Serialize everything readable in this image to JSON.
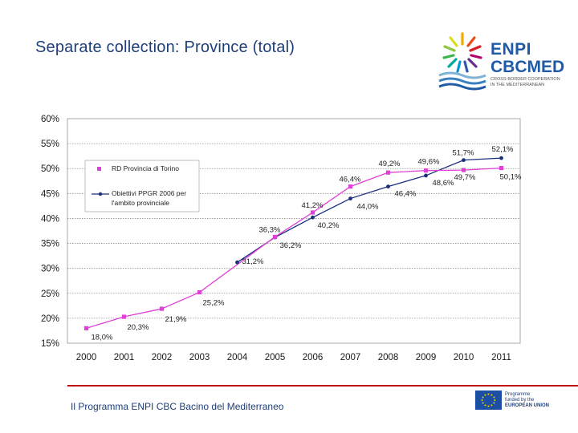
{
  "title": "Separate collection: Province (total)",
  "footer": "Il Programma ENPI CBC Bacino del Mediterraneo",
  "logo": {
    "line1": "ENPI",
    "line2": "CBCMED",
    "tagline1": "CROSS-BORDER COOPERATION",
    "tagline2": "IN THE MEDITERRANEAN"
  },
  "eu_logo": {
    "line1": "Programme",
    "line2": "funded by the",
    "line3": "EUROPEAN UNION"
  },
  "colors": {
    "rd": "#e040d8",
    "target": "#1a2f7a",
    "grid": "#8f8f8f",
    "plot_border": "#a8a8a8",
    "title": "#1f3f78",
    "footer_line": "#c00000"
  },
  "chart_data": {
    "type": "line",
    "title": "",
    "xlabel": "",
    "ylabel": "",
    "x": [
      "2000",
      "2001",
      "2002",
      "2003",
      "2004",
      "2005",
      "2006",
      "2007",
      "2008",
      "2009",
      "2010",
      "2011"
    ],
    "yticks": [
      "15%",
      "20%",
      "25%",
      "30%",
      "35%",
      "40%",
      "45%",
      "50%",
      "55%",
      "60%"
    ],
    "ylim": [
      15,
      60
    ],
    "grid": true,
    "legend_position": "top-left",
    "series": [
      {
        "name": "RD Provincia di Torino",
        "marker": "square",
        "values": [
          18.0,
          20.3,
          21.9,
          25.2,
          null,
          36.3,
          41.2,
          46.4,
          49.2,
          49.6,
          49.7,
          50.1
        ],
        "labels": [
          "18,0%",
          "20,3%",
          "21,9%",
          "25,2%",
          "",
          "36,3%",
          "41,2%",
          "46,4%",
          "49,2%",
          "49,6%",
          "49,7%",
          "50,1%"
        ]
      },
      {
        "name": "Obiettivi PPGR 2006 per l'ambito provinciale",
        "marker": "diamond",
        "values": [
          null,
          null,
          null,
          null,
          31.2,
          36.2,
          40.2,
          44.0,
          46.4,
          48.6,
          51.7,
          52.1
        ],
        "labels": [
          "",
          "",
          "",
          "",
          "31,2%",
          "36,2%",
          "40,2%",
          "44,0%",
          "46,4%",
          "48,6%",
          "51,7%",
          "52,1%"
        ]
      }
    ]
  }
}
